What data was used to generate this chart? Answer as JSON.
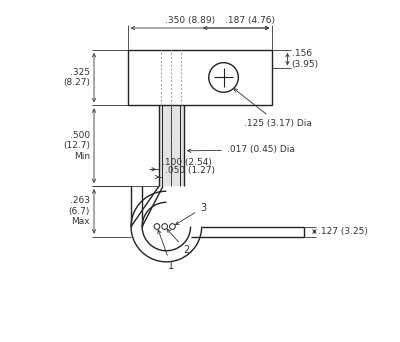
{
  "bg_color": "#ffffff",
  "line_color": "#222222",
  "dim_color": "#333333",
  "fig_width": 4.0,
  "fig_height": 3.42,
  "annotations": {
    "top_width": ".350 (8.89)",
    "right_width": ".187 (4.76)",
    "right_height_top": ".156\n(3.95)",
    "left_height_body": ".325\n(8.27)",
    "left_height_leads": ".500\n(12.7)\nMin",
    "hole_dia": ".125 (3.17) Dia",
    "lead_dia": ".017 (0.45) Dia",
    "lead_space1": ".100 (2.54)",
    "lead_space2": ".050 (1.27)",
    "bend_height": ".263\n(6.7)\nMax",
    "tab_height": ".127 (3.25)",
    "pin1": "1",
    "pin2": "2",
    "pin3": "3"
  }
}
